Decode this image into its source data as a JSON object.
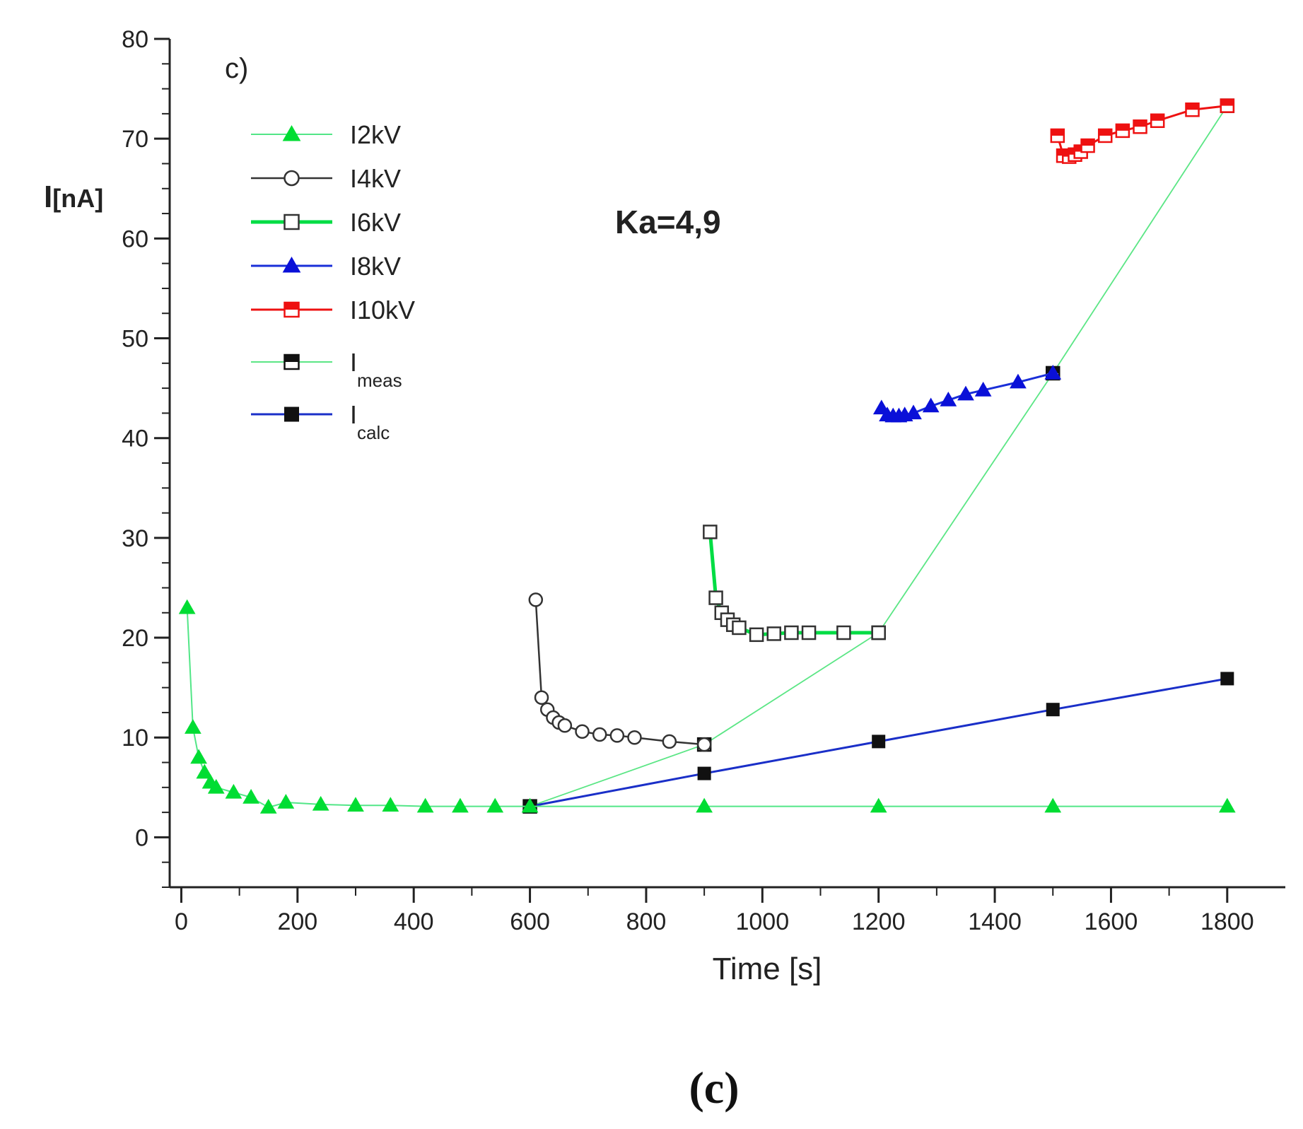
{
  "chart_data": {
    "type": "line",
    "panel_label": "c)",
    "annotation": "Ka=4,9",
    "caption": "(c)",
    "xlabel": "Time [s]",
    "ylabel": {
      "main": "I",
      "sub": "[nA]"
    },
    "xlim": [
      -20,
      1900
    ],
    "ylim": [
      -5,
      80
    ],
    "xticks": [
      0,
      200,
      400,
      600,
      800,
      1000,
      1200,
      1400,
      1600,
      1800
    ],
    "yticks": [
      0,
      10,
      20,
      30,
      40,
      50,
      60,
      70,
      80
    ],
    "series": [
      {
        "name": "I2kV",
        "main": "I",
        "sub": "2kV",
        "color": "#2ee66e",
        "marker": "triangle",
        "fill": "#00dd33",
        "width": 2,
        "dash": "",
        "linecolor": "#52e687",
        "x": [
          10,
          20,
          30,
          40,
          50,
          60,
          90,
          120,
          150,
          180,
          240,
          300,
          360,
          420,
          480,
          540,
          600,
          900,
          1200,
          1500,
          1800
        ],
        "y": [
          23,
          11,
          8,
          6.5,
          5.5,
          5,
          4.5,
          4,
          3,
          3.5,
          3.3,
          3.2,
          3.2,
          3.1,
          3.1,
          3.1,
          3.1,
          3.1,
          3.1,
          3.1,
          3.1
        ]
      },
      {
        "name": "I4kV",
        "main": "I",
        "sub": "4kV",
        "color": "#333333",
        "marker": "circle",
        "fill": "#ffffff",
        "width": 2.5,
        "dash": "",
        "linecolor": "#333333",
        "x": [
          610,
          620,
          630,
          640,
          650,
          660,
          690,
          720,
          750,
          780,
          840,
          900
        ],
        "y": [
          23.8,
          14,
          12.8,
          12,
          11.5,
          11.2,
          10.6,
          10.3,
          10.2,
          10,
          9.6,
          9.3
        ]
      },
      {
        "name": "I6kV",
        "main": "I",
        "sub": "6kV",
        "color": "#333333",
        "marker": "square",
        "fill": "#ffffff",
        "width": 5,
        "dash": "",
        "linecolor": "#00dd44",
        "x": [
          910,
          920,
          930,
          940,
          950,
          960,
          990,
          1020,
          1050,
          1080,
          1140,
          1200
        ],
        "y": [
          30.6,
          24,
          22.5,
          21.8,
          21.3,
          21,
          20.3,
          20.4,
          20.5,
          20.5,
          20.5,
          20.5
        ]
      },
      {
        "name": "I8kV",
        "main": "I",
        "sub": "8kV",
        "color": "#0a10d8",
        "marker": "triangle",
        "fill": "#0a10d8",
        "width": 3,
        "dash": "",
        "linecolor": "#1a2fd8",
        "x": [
          1205,
          1215,
          1225,
          1235,
          1245,
          1260,
          1290,
          1320,
          1350,
          1380,
          1440,
          1500
        ],
        "y": [
          43,
          42.3,
          42.2,
          42.2,
          42.3,
          42.5,
          43.2,
          43.8,
          44.4,
          44.8,
          45.6,
          46.5
        ]
      },
      {
        "name": "I10kV",
        "main": "I",
        "sub": "10kV",
        "color": "#ee1111",
        "marker": "halfsquare",
        "fill": "#ee1111",
        "width": 3,
        "dash": "",
        "linecolor": "#ee1111",
        "x": [
          1508,
          1518,
          1528,
          1538,
          1548,
          1560,
          1590,
          1620,
          1650,
          1680,
          1740,
          1800
        ],
        "y": [
          70.3,
          68.3,
          68.2,
          68.4,
          68.7,
          69.3,
          70.3,
          70.8,
          71.2,
          71.8,
          72.9,
          73.3
        ]
      },
      {
        "name": "Imeas",
        "main": "I",
        "sub": "meas",
        "color": "#111111",
        "marker": "halfsquare",
        "fill": "#111111",
        "width": 1.8,
        "dash": "",
        "linecolor": "#5be685",
        "x": [
          600,
          900,
          1200,
          1500,
          1800
        ],
        "y": [
          3.1,
          9.3,
          20.5,
          46.5,
          73.3
        ]
      },
      {
        "name": "Icalc",
        "main": "I",
        "sub": "calc",
        "color": "#111111",
        "marker": "filledsquare",
        "fill": "#111111",
        "width": 3,
        "dash": "",
        "linecolor": "#1a2fc8",
        "x": [
          600,
          900,
          1200,
          1500,
          1800
        ],
        "y": [
          3.1,
          6.4,
          9.6,
          12.8,
          15.9
        ]
      }
    ]
  }
}
